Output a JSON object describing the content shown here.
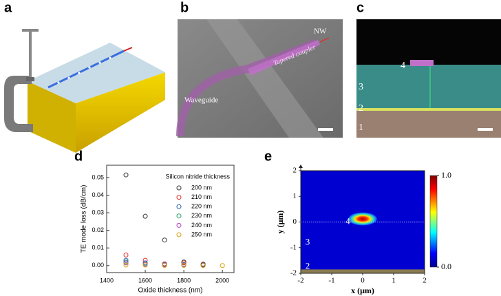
{
  "figure": {
    "panel_labels": [
      "a",
      "b",
      "c",
      "d",
      "e"
    ],
    "panel_b": {
      "nw_label": "NW",
      "coupler_label": "Tapered coupler",
      "waveguide_label": "Waveguide"
    },
    "panel_c": {
      "layer_labels": [
        "4",
        "3",
        "2",
        "1"
      ]
    }
  },
  "chart_data": [
    {
      "type": "scatter",
      "x_label": "Oxide thickness (nm)",
      "y_label": "TE mode loss (dB/cm)",
      "legend_title": "Silicon nitride thickness",
      "legend": "upper right",
      "x": [
        1500,
        1600,
        1700,
        1800,
        1900,
        2000
      ],
      "series": [
        {
          "name": "200 nm",
          "color": "#333333",
          "values": [
            0.0515,
            0.028,
            0.0145,
            0.002,
            0.0008,
            null
          ]
        },
        {
          "name": "210 nm",
          "color": "#e03030",
          "values": [
            0.006,
            0.003,
            0.001,
            0.0015,
            0.0005,
            null
          ]
        },
        {
          "name": "220 nm",
          "color": "#2060b0",
          "values": [
            0.003,
            0.0015,
            0.0006,
            0.0006,
            0.0003,
            null
          ]
        },
        {
          "name": "230 nm",
          "color": "#20a060",
          "values": [
            0.002,
            0.001,
            0.0004,
            0.0004,
            0.0002,
            null
          ]
        },
        {
          "name": "240 nm",
          "color": "#b040c0",
          "values": [
            0.0015,
            0.0008,
            0.0003,
            0.0003,
            0.0001,
            null
          ]
        },
        {
          "name": "250 nm",
          "color": "#d8a010",
          "values": [
            0.0003,
            0.0003,
            0.0001,
            0.0001,
            0.0,
            0.0
          ]
        }
      ],
      "xlim": [
        1400,
        2060
      ],
      "xticks": [
        1400,
        1600,
        1800,
        2000
      ],
      "ylim": [
        -0.004,
        0.057
      ],
      "yticks": [
        {
          "value": 0,
          "label": "0.00"
        },
        {
          "value": 0.01,
          "label": "0.01"
        },
        {
          "value": 0.02,
          "label": "0.02"
        },
        {
          "value": 0.03,
          "label": "0.03"
        },
        {
          "value": 0.04,
          "label": "0.04"
        },
        {
          "value": 0.05,
          "label": "0.05"
        }
      ]
    },
    {
      "type": "heatmap",
      "x_label": "x (μm)",
      "y_label": "y (μm)",
      "xlim": [
        -2,
        2
      ],
      "xticks": [
        -2,
        -1,
        0,
        1,
        2
      ],
      "ylim": [
        -2,
        2
      ],
      "yticks": [
        -2,
        -1,
        0,
        1,
        2
      ],
      "clim": [
        0,
        1
      ],
      "cticks": [
        {
          "value": 1,
          "label": "1.0"
        },
        {
          "value": 0,
          "label": "0.0"
        }
      ],
      "annotations": [
        "4",
        "3",
        "2"
      ]
    }
  ]
}
